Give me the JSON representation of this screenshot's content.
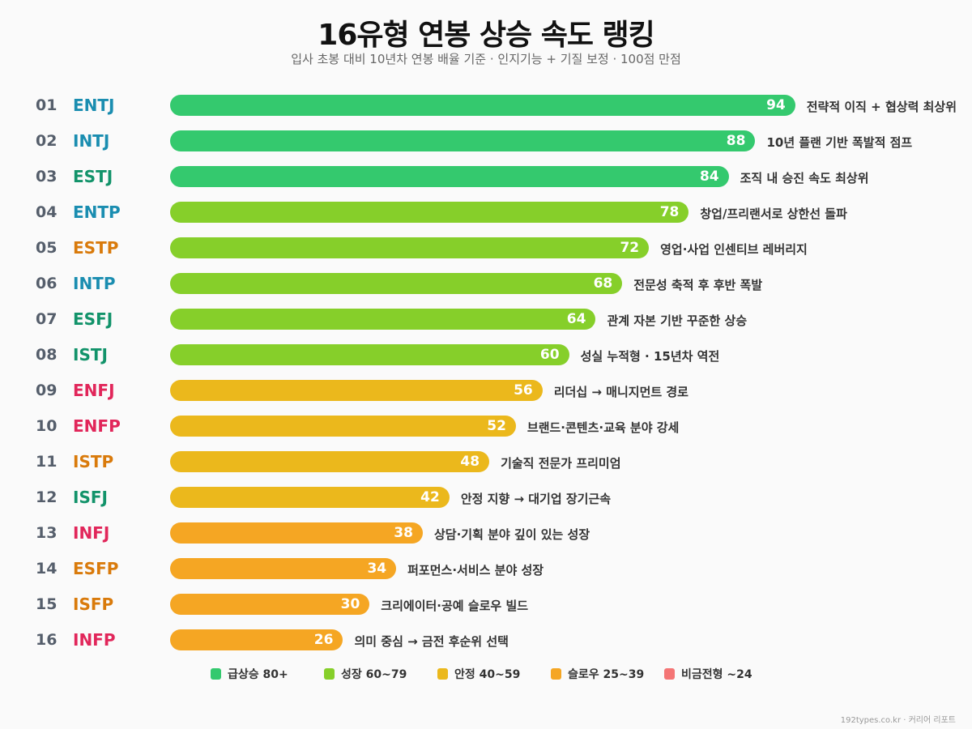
{
  "chart_data": {
    "type": "bar",
    "orientation": "horizontal",
    "title": "16유형 연봉 상승 속도 랭킹",
    "subtitle": "입사 초봉 대비 10년차 연봉 배율 기준 · 인지기능 + 기질 보정 · 100점 만점",
    "xlim": [
      0,
      100
    ],
    "grid": false,
    "legend_placement": "bottom",
    "ranks": [
      "01",
      "02",
      "03",
      "04",
      "05",
      "06",
      "07",
      "08",
      "09",
      "10",
      "11",
      "12",
      "13",
      "14",
      "15",
      "16"
    ],
    "categories": [
      "ENTJ",
      "INTJ",
      "ESTJ",
      "ENTP",
      "ESTP",
      "INTP",
      "ESFJ",
      "ISTJ",
      "ENFJ",
      "ENFP",
      "ISTP",
      "ISFJ",
      "INFJ",
      "ESFP",
      "ISFP",
      "INFP"
    ],
    "values": [
      94,
      88,
      84,
      78,
      72,
      68,
      64,
      60,
      56,
      52,
      48,
      42,
      38,
      34,
      30,
      26
    ],
    "annotations": [
      "전략적 이직 + 협상력 최상위",
      "10년 플랜 기반 폭발적 점프",
      "조직 내 승진 속도 최상위",
      "창업/프리랜서로 상한선 돌파",
      "영업·사업 인센티브 레버리지",
      "전문성 축적 후 후반 폭발",
      "관계 자본 기반 꾸준한 상승",
      "성실 누적형 · 15년차 역전",
      "리더십 → 매니지먼트 경로",
      "브랜드·콘텐츠·교육 분야 강세",
      "기술직 전문가 프리미엄",
      "안정 지향 → 대기업 장기근속",
      "상담·기획 분야 깊이 있는 성장",
      "퍼포먼스·서비스 분야 성장",
      "크리에이터·공예 슬로우 빌드",
      "의미 중심 → 금전 후순위 선택"
    ],
    "type_groups": {
      "NT": "#1a8db0",
      "SJ": "#12936a",
      "SP": "#d97a0b",
      "NF": "#e1265a"
    },
    "legend": [
      {
        "label": "급상승 80+",
        "color": "#34c96e",
        "min": 80
      },
      {
        "label": "성장 60~79",
        "color": "#86cf2a",
        "min": 60
      },
      {
        "label": "안정 40~59",
        "color": "#ebb81c",
        "min": 40
      },
      {
        "label": "슬로우 25~39",
        "color": "#f5a623",
        "min": 25
      },
      {
        "label": "비금전형 ~24",
        "color": "#f47575",
        "min": 0
      }
    ]
  },
  "footer": "192types.co.kr · 커리어 리포트"
}
